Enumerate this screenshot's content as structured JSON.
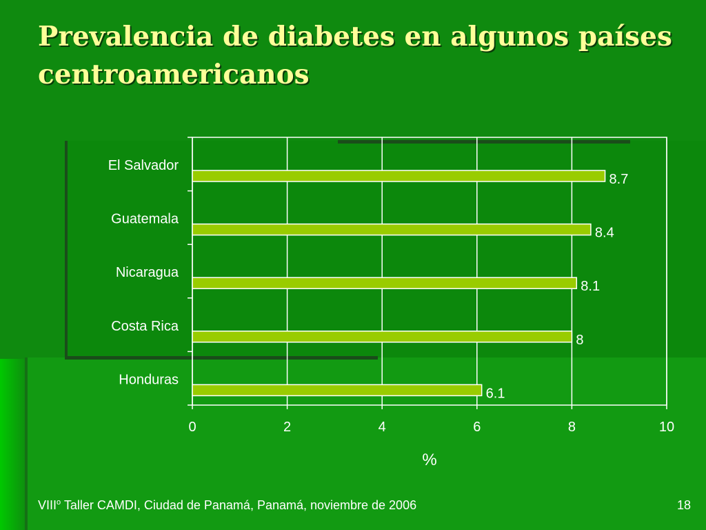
{
  "slide": {
    "title": "Prevalencia de diabetes en algunos países centroamericanos",
    "footer": {
      "prefix": "VIII",
      "sup": "o",
      "text": " Taller CAMDI, Ciudad de Panamá, Panamá, noviembre de 2006"
    },
    "page_number": "18"
  },
  "colors": {
    "background": "#0f8a0f",
    "title": "#ffff99",
    "bar_fill": "#99cc00",
    "bar_edge": "#ffffff",
    "grid": "#ffffff",
    "text": "#ffffff"
  },
  "chart_data": {
    "type": "bar",
    "orientation": "horizontal",
    "categories": [
      "El Salvador",
      "Guatemala",
      "Nicaragua",
      "Costa Rica",
      "Honduras"
    ],
    "values": [
      8.7,
      8.4,
      8.1,
      8,
      6.1
    ],
    "data_labels": [
      "8.7",
      "8.4",
      "8.1",
      "8",
      "6.1"
    ],
    "xlabel": "%",
    "xlim": [
      0,
      10
    ],
    "xticks": [
      0,
      2,
      4,
      6,
      8,
      10
    ],
    "grid": true,
    "legend": "none"
  }
}
